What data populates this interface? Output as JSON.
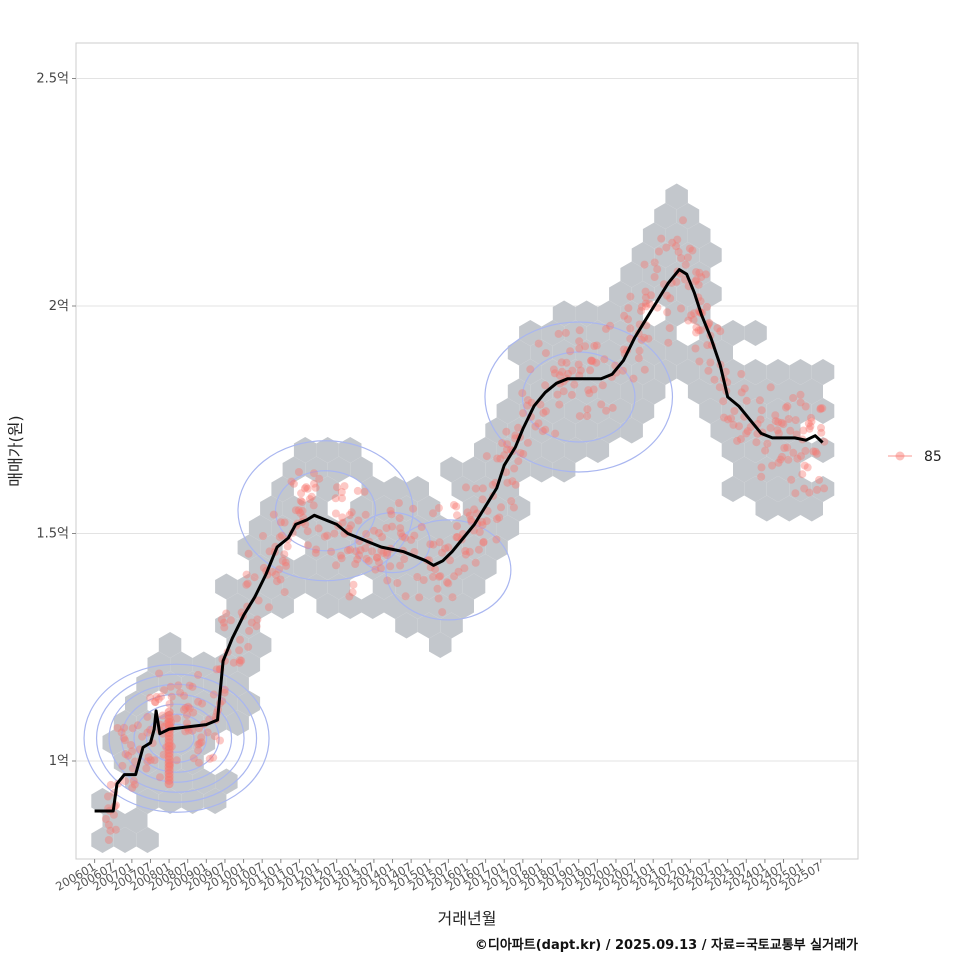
{
  "chart_data": {
    "type": "scatter",
    "xlabel": "거래년월",
    "ylabel": "매매가(원)",
    "x_ticks": [
      "200601",
      "200607",
      "200701",
      "200707",
      "200801",
      "200807",
      "200901",
      "200907",
      "201001",
      "201007",
      "201101",
      "201107",
      "201201",
      "201207",
      "201301",
      "201307",
      "201401",
      "201407",
      "201501",
      "201507",
      "201601",
      "201607",
      "201701",
      "201707",
      "201801",
      "201807",
      "201901",
      "201907",
      "202001",
      "202007",
      "202101",
      "202107",
      "202201",
      "202207",
      "202301",
      "202307",
      "202401",
      "202407",
      "202501",
      "202507"
    ],
    "y_ticks": [
      {
        "value": 1.0,
        "label": "1억"
      },
      {
        "value": 1.5,
        "label": "1.5억"
      },
      {
        "value": 2.0,
        "label": "2억"
      },
      {
        "value": 2.5,
        "label": "2.5억"
      }
    ],
    "ylim": [
      0.78,
      2.58
    ],
    "xlim": [
      2005.5,
      2026.5
    ],
    "grid": true,
    "legend": {
      "position": "right",
      "entries": [
        "85"
      ]
    },
    "series": [
      {
        "name": "85",
        "kind": "points",
        "color": "#f8766d"
      },
      {
        "kind": "moving-average",
        "color": "#000000",
        "points": [
          [
            2006.0,
            0.89
          ],
          [
            2006.5,
            0.89
          ],
          [
            2006.6,
            0.95
          ],
          [
            2006.8,
            0.97
          ],
          [
            2007.1,
            0.97
          ],
          [
            2007.3,
            1.03
          ],
          [
            2007.5,
            1.04
          ],
          [
            2007.6,
            1.07
          ],
          [
            2007.65,
            1.11
          ],
          [
            2007.75,
            1.06
          ],
          [
            2008.0,
            1.07
          ],
          [
            2008.5,
            1.075
          ],
          [
            2009.0,
            1.08
          ],
          [
            2009.3,
            1.09
          ],
          [
            2009.45,
            1.22
          ],
          [
            2009.7,
            1.27
          ],
          [
            2010.0,
            1.32
          ],
          [
            2010.3,
            1.36
          ],
          [
            2010.6,
            1.41
          ],
          [
            2010.9,
            1.47
          ],
          [
            2011.2,
            1.49
          ],
          [
            2011.4,
            1.52
          ],
          [
            2011.7,
            1.53
          ],
          [
            2011.9,
            1.54
          ],
          [
            2012.2,
            1.53
          ],
          [
            2012.5,
            1.52
          ],
          [
            2012.8,
            1.5
          ],
          [
            2013.1,
            1.49
          ],
          [
            2013.4,
            1.48
          ],
          [
            2013.7,
            1.47
          ],
          [
            2014.0,
            1.465
          ],
          [
            2014.3,
            1.46
          ],
          [
            2014.6,
            1.45
          ],
          [
            2014.9,
            1.44
          ],
          [
            2015.1,
            1.43
          ],
          [
            2015.35,
            1.44
          ],
          [
            2015.6,
            1.46
          ],
          [
            2015.9,
            1.49
          ],
          [
            2016.2,
            1.52
          ],
          [
            2016.5,
            1.56
          ],
          [
            2016.8,
            1.6
          ],
          [
            2017.0,
            1.65
          ],
          [
            2017.3,
            1.69
          ],
          [
            2017.5,
            1.73
          ],
          [
            2017.8,
            1.78
          ],
          [
            2018.1,
            1.81
          ],
          [
            2018.4,
            1.83
          ],
          [
            2018.7,
            1.84
          ],
          [
            2019.0,
            1.84
          ],
          [
            2019.3,
            1.84
          ],
          [
            2019.6,
            1.84
          ],
          [
            2019.9,
            1.85
          ],
          [
            2020.2,
            1.88
          ],
          [
            2020.5,
            1.93
          ],
          [
            2020.8,
            1.97
          ],
          [
            2021.1,
            2.01
          ],
          [
            2021.4,
            2.05
          ],
          [
            2021.7,
            2.08
          ],
          [
            2021.9,
            2.07
          ],
          [
            2022.1,
            2.03
          ],
          [
            2022.3,
            1.98
          ],
          [
            2022.55,
            1.93
          ],
          [
            2022.8,
            1.87
          ],
          [
            2023.0,
            1.8
          ],
          [
            2023.3,
            1.78
          ],
          [
            2023.6,
            1.75
          ],
          [
            2023.9,
            1.72
          ],
          [
            2024.2,
            1.71
          ],
          [
            2024.5,
            1.71
          ],
          [
            2024.8,
            1.71
          ],
          [
            2025.1,
            1.705
          ],
          [
            2025.35,
            1.715
          ],
          [
            2025.55,
            1.7
          ]
        ]
      }
    ]
  },
  "caption": "©디아파트(dapt.kr) / 2025.09.13 / 자료=국토교통부 실거래가"
}
